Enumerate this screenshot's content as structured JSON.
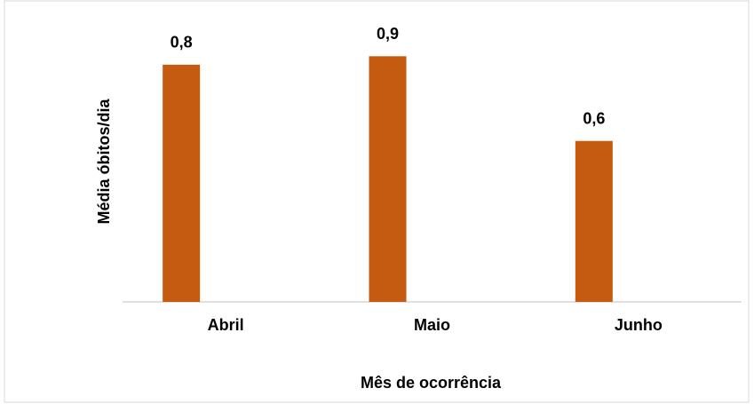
{
  "chart_data": {
    "type": "bar",
    "categories": [
      "Abril",
      "Maio",
      "Junho"
    ],
    "values": [
      0.84,
      0.87,
      0.57
    ],
    "value_labels": [
      "0,8",
      "0,9",
      "0,6"
    ],
    "color": "#c55a11",
    "ylim": [
      0,
      1
    ],
    "x_label": "Mês de ocorrência",
    "y_label": "Média óbitos/dia"
  }
}
